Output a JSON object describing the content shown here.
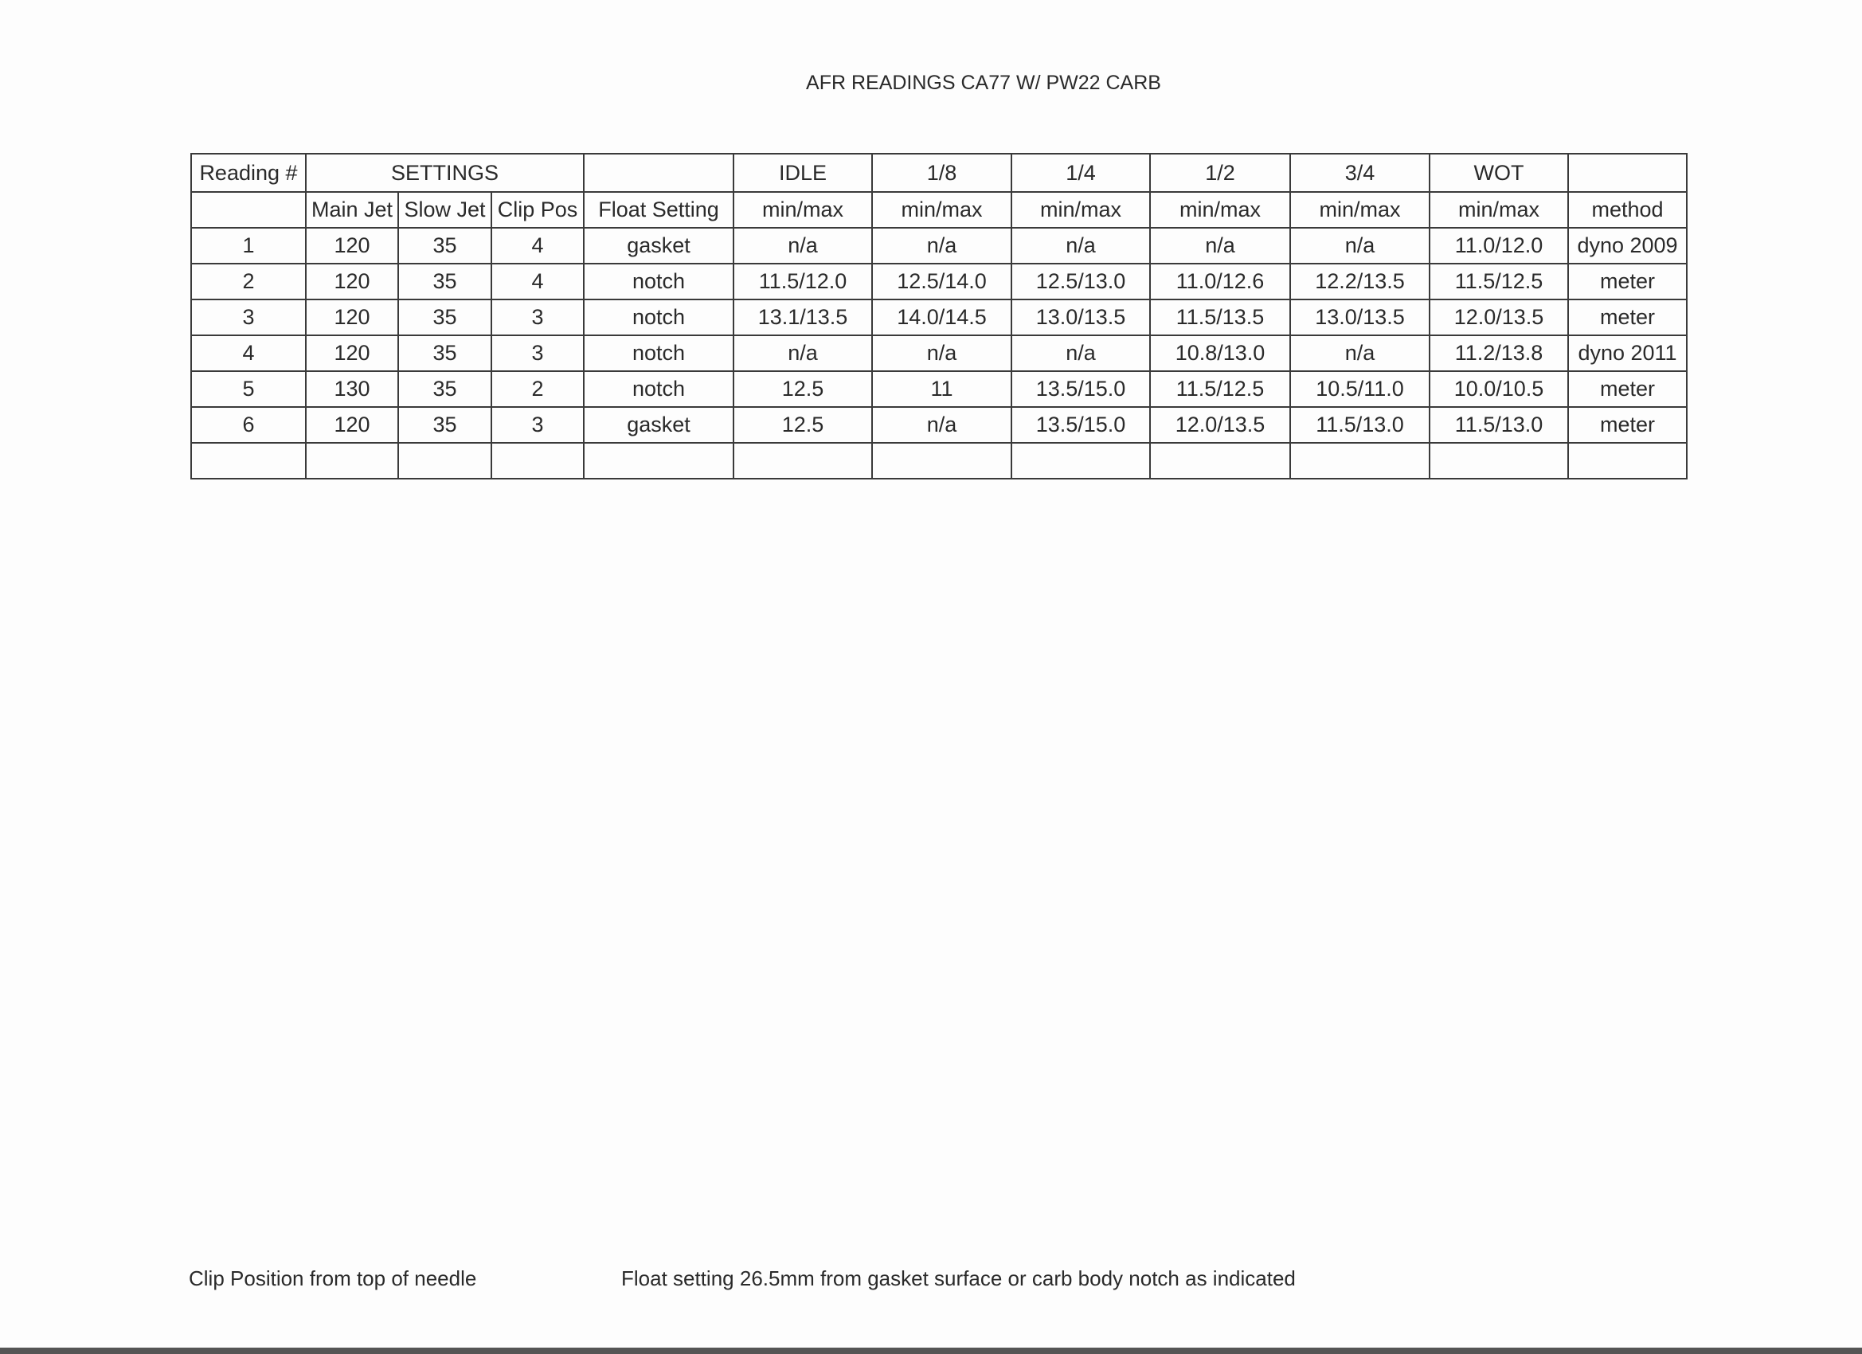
{
  "title": "AFR READINGS CA77 W/ PW22 CARB",
  "table": {
    "header_row1": [
      "Reading #",
      "SETTINGS",
      "",
      "IDLE",
      "1/8",
      "1/4",
      "1/2",
      "3/4",
      "WOT",
      ""
    ],
    "header_row2": [
      "",
      "Main Jet",
      "Slow Jet",
      "Clip Pos",
      "Float Setting",
      "min/max",
      "min/max",
      "min/max",
      "min/max",
      "min/max",
      "min/max",
      "method"
    ],
    "rows": [
      [
        "1",
        "120",
        "35",
        "4",
        "gasket",
        "n/a",
        "n/a",
        "n/a",
        "n/a",
        "n/a",
        "11.0/12.0",
        "dyno 2009"
      ],
      [
        "2",
        "120",
        "35",
        "4",
        "notch",
        "11.5/12.0",
        "12.5/14.0",
        "12.5/13.0",
        "11.0/12.6",
        "12.2/13.5",
        "11.5/12.5",
        "meter"
      ],
      [
        "3",
        "120",
        "35",
        "3",
        "notch",
        "13.1/13.5",
        "14.0/14.5",
        "13.0/13.5",
        "11.5/13.5",
        "13.0/13.5",
        "12.0/13.5",
        "meter"
      ],
      [
        "4",
        "120",
        "35",
        "3",
        "notch",
        "n/a",
        "n/a",
        "n/a",
        "10.8/13.0",
        "n/a",
        "11.2/13.8",
        "dyno 2011"
      ],
      [
        "5",
        "130",
        "35",
        "2",
        "notch",
        "12.5",
        "11",
        "13.5/15.0",
        "11.5/12.5",
        "10.5/11.0",
        "10.0/10.5",
        "meter"
      ],
      [
        "6",
        "120",
        "35",
        "3",
        "gasket",
        "12.5",
        "n/a",
        "13.5/15.0",
        "12.0/13.5",
        "11.5/13.0",
        "11.5/13.0",
        "meter"
      ],
      [
        "",
        "",
        "",
        "",
        "",
        "",
        "",
        "",
        "",
        "",
        "",
        ""
      ]
    ]
  },
  "notes": {
    "clip": "Clip Position from top of needle",
    "float": "Float setting 26.5mm from gasket surface or carb body notch as indicated"
  }
}
